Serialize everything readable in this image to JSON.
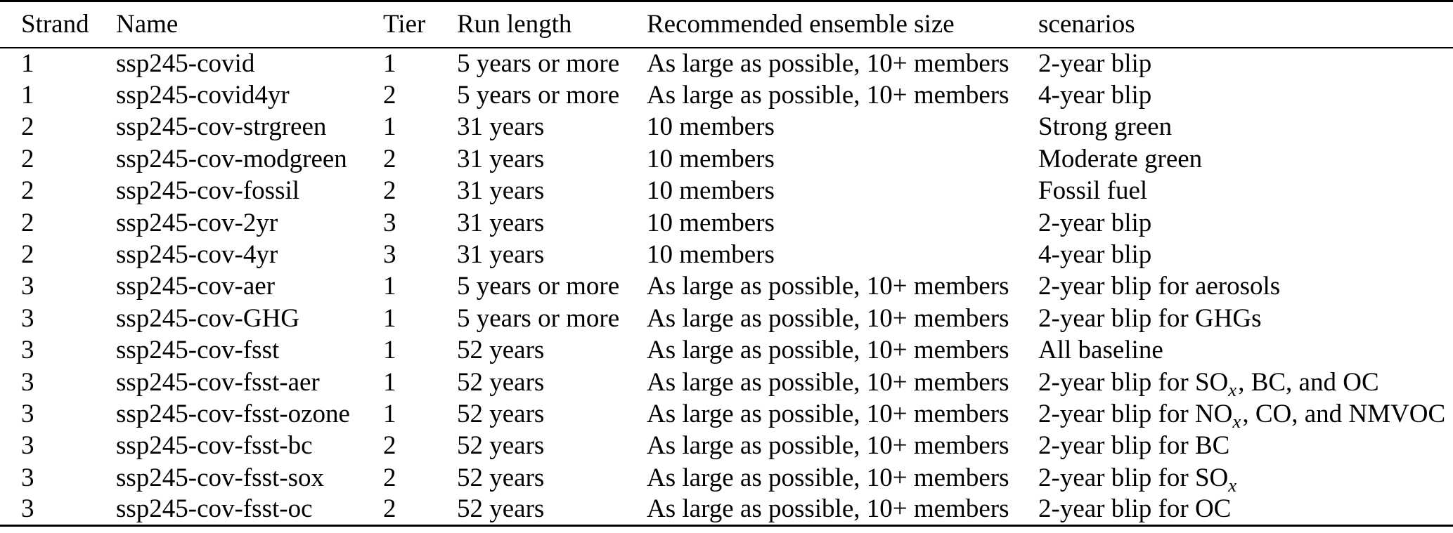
{
  "colors": {
    "background": "#ffffff",
    "text": "#000000",
    "rule": "#000000"
  },
  "table": {
    "columns": [
      {
        "id": "strand",
        "label": "Strand"
      },
      {
        "id": "name",
        "label": "Name"
      },
      {
        "id": "tier",
        "label": "Tier"
      },
      {
        "id": "run_length",
        "label": "Run length"
      },
      {
        "id": "ensemble",
        "label": "Recommended ensemble size"
      },
      {
        "id": "scenarios",
        "label": "scenarios"
      }
    ],
    "rows": [
      {
        "strand": "1",
        "name": "ssp245-covid",
        "tier": "1",
        "run_length": "5 years or more",
        "ensemble": "As large as possible, 10+ members",
        "scenario": [
          {
            "text": "2-year blip"
          }
        ]
      },
      {
        "strand": "1",
        "name": "ssp245-covid4yr",
        "tier": "2",
        "run_length": "5 years or more",
        "ensemble": "As large as possible, 10+ members",
        "scenario": [
          {
            "text": "4-year blip"
          }
        ]
      },
      {
        "strand": "2",
        "name": "ssp245-cov-strgreen",
        "tier": "1",
        "run_length": "31 years",
        "ensemble": "10 members",
        "scenario": [
          {
            "text": "Strong green"
          }
        ]
      },
      {
        "strand": "2",
        "name": "ssp245-cov-modgreen",
        "tier": "2",
        "run_length": "31 years",
        "ensemble": "10 members",
        "scenario": [
          {
            "text": "Moderate green"
          }
        ]
      },
      {
        "strand": "2",
        "name": "ssp245-cov-fossil",
        "tier": "2",
        "run_length": "31 years",
        "ensemble": "10 members",
        "scenario": [
          {
            "text": "Fossil fuel"
          }
        ]
      },
      {
        "strand": "2",
        "name": "ssp245-cov-2yr",
        "tier": "3",
        "run_length": "31 years",
        "ensemble": "10 members",
        "scenario": [
          {
            "text": "2-year blip"
          }
        ]
      },
      {
        "strand": "2",
        "name": "ssp245-cov-4yr",
        "tier": "3",
        "run_length": "31 years",
        "ensemble": "10 members",
        "scenario": [
          {
            "text": "4-year blip"
          }
        ]
      },
      {
        "strand": "3",
        "name": "ssp245-cov-aer",
        "tier": "1",
        "run_length": "5 years or more",
        "ensemble": "As large as possible, 10+ members",
        "scenario": [
          {
            "text": "2-year blip for aerosols"
          }
        ]
      },
      {
        "strand": "3",
        "name": "ssp245-cov-GHG",
        "tier": "1",
        "run_length": "5 years or more",
        "ensemble": "As large as possible, 10+ members",
        "scenario": [
          {
            "text": "2-year blip for GHGs"
          }
        ]
      },
      {
        "strand": "3",
        "name": "ssp245-cov-fsst",
        "tier": "1",
        "run_length": "52 years",
        "ensemble": "As large as possible, 10+ members",
        "scenario": [
          {
            "text": "All baseline"
          }
        ]
      },
      {
        "strand": "3",
        "name": "ssp245-cov-fsst-aer",
        "tier": "1",
        "run_length": "52 years",
        "ensemble": "As large as possible, 10+ members",
        "scenario": [
          {
            "text": "2-year blip for SO"
          },
          {
            "text": "x",
            "style": "subscript-italic"
          },
          {
            "text": ", BC, and OC"
          }
        ]
      },
      {
        "strand": "3",
        "name": "ssp245-cov-fsst-ozone",
        "tier": "1",
        "run_length": "52 years",
        "ensemble": "As large as possible, 10+ members",
        "scenario": [
          {
            "text": "2-year blip for NO"
          },
          {
            "text": "x",
            "style": "subscript-italic"
          },
          {
            "text": ", CO, and NMVOC"
          }
        ]
      },
      {
        "strand": "3",
        "name": "ssp245-cov-fsst-bc",
        "tier": "2",
        "run_length": "52 years",
        "ensemble": "As large as possible, 10+ members",
        "scenario": [
          {
            "text": "2-year blip for BC"
          }
        ]
      },
      {
        "strand": "3",
        "name": "ssp245-cov-fsst-sox",
        "tier": "2",
        "run_length": "52 years",
        "ensemble": "As large as possible, 10+ members",
        "scenario": [
          {
            "text": "2-year blip for SO"
          },
          {
            "text": "x",
            "style": "subscript-italic"
          }
        ]
      },
      {
        "strand": "3",
        "name": "ssp245-cov-fsst-oc",
        "tier": "2",
        "run_length": "52 years",
        "ensemble": "As large as possible, 10+ members",
        "scenario": [
          {
            "text": "2-year blip for OC"
          }
        ]
      }
    ]
  }
}
